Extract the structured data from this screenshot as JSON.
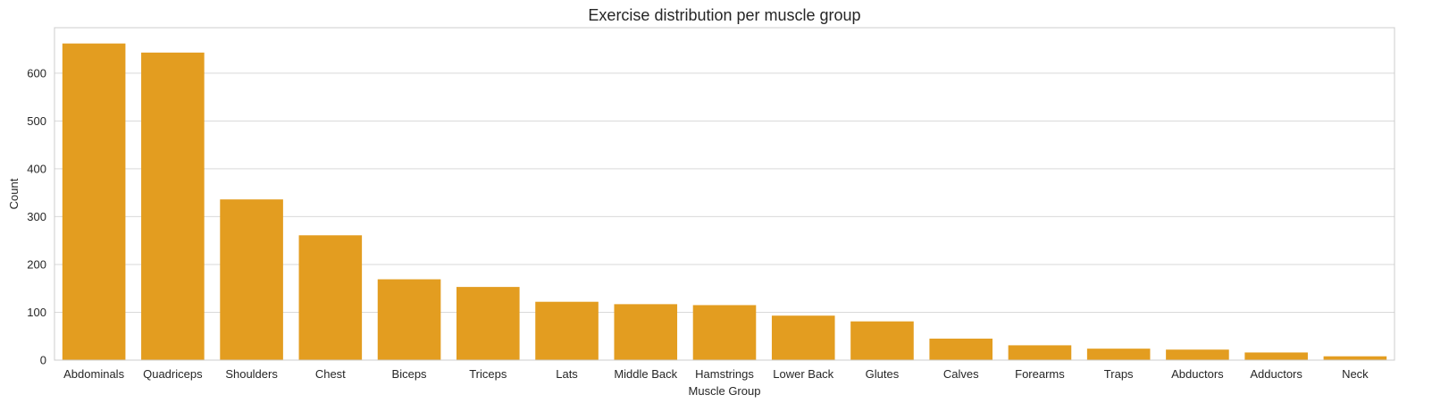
{
  "chart_data": {
    "type": "bar",
    "title": "Exercise distribution per muscle group",
    "xlabel": "Muscle Group",
    "ylabel": "Count",
    "categories": [
      "Abdominals",
      "Quadriceps",
      "Shoulders",
      "Chest",
      "Biceps",
      "Triceps",
      "Lats",
      "Middle Back",
      "Hamstrings",
      "Lower Back",
      "Glutes",
      "Calves",
      "Forearms",
      "Traps",
      "Abductors",
      "Adductors",
      "Neck"
    ],
    "values": [
      662,
      643,
      336,
      261,
      169,
      153,
      122,
      117,
      115,
      93,
      81,
      45,
      31,
      24,
      22,
      16,
      8
    ],
    "ylim": [
      0,
      695
    ],
    "yticks": [
      0,
      100,
      200,
      300,
      400,
      500,
      600
    ],
    "grid": "horizontal",
    "bar_color": "#e39d20",
    "grid_color": "#d9d9d9",
    "axes_edge_color": "#cccccc",
    "text_color": "#262626"
  }
}
